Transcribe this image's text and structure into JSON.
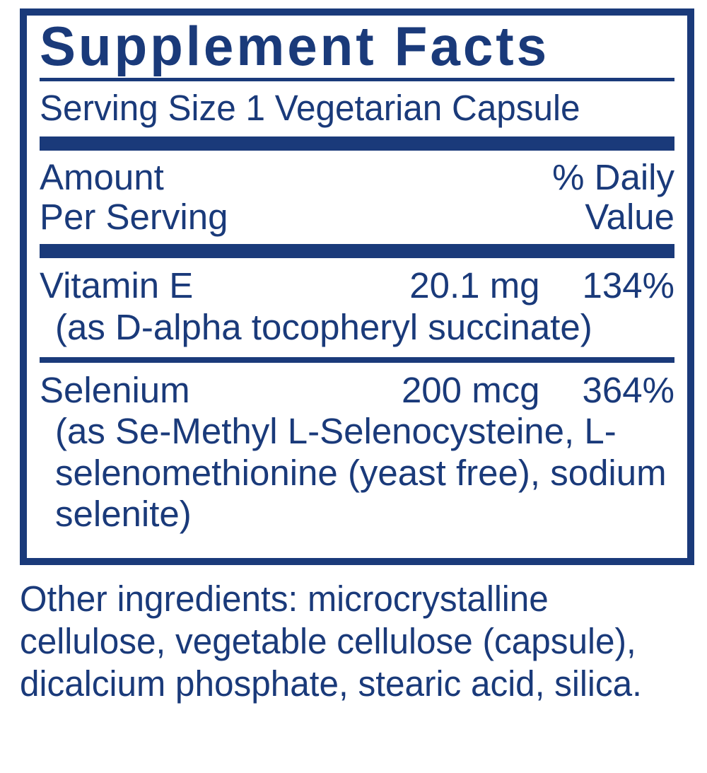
{
  "colors": {
    "text": "#1a3a7a",
    "rule": "#1a3a7a",
    "bg": "#ffffff"
  },
  "title": "Supplement Facts",
  "serving_size": "Serving Size 1 Vegetarian Capsule",
  "header": {
    "left_line1": "Amount",
    "left_line2": "Per Serving",
    "right_line1": "% Daily",
    "right_line2": "Value"
  },
  "rows": [
    {
      "name": "Vitamin E",
      "amount": "20.1 mg",
      "dv": "134%",
      "sub": "(as D-alpha tocopheryl succinate)"
    },
    {
      "name": "Selenium",
      "amount": "200 mcg",
      "dv": "364%",
      "sub": "(as Se-Methyl L-Selenocysteine, L-selenomethionine (yeast free), sodium selenite)"
    }
  ],
  "other_ingredients": "Other ingredients: microcrystalline cellulose, vegetable cellulose (capsule), dicalcium phosphate, stearic acid, silica."
}
